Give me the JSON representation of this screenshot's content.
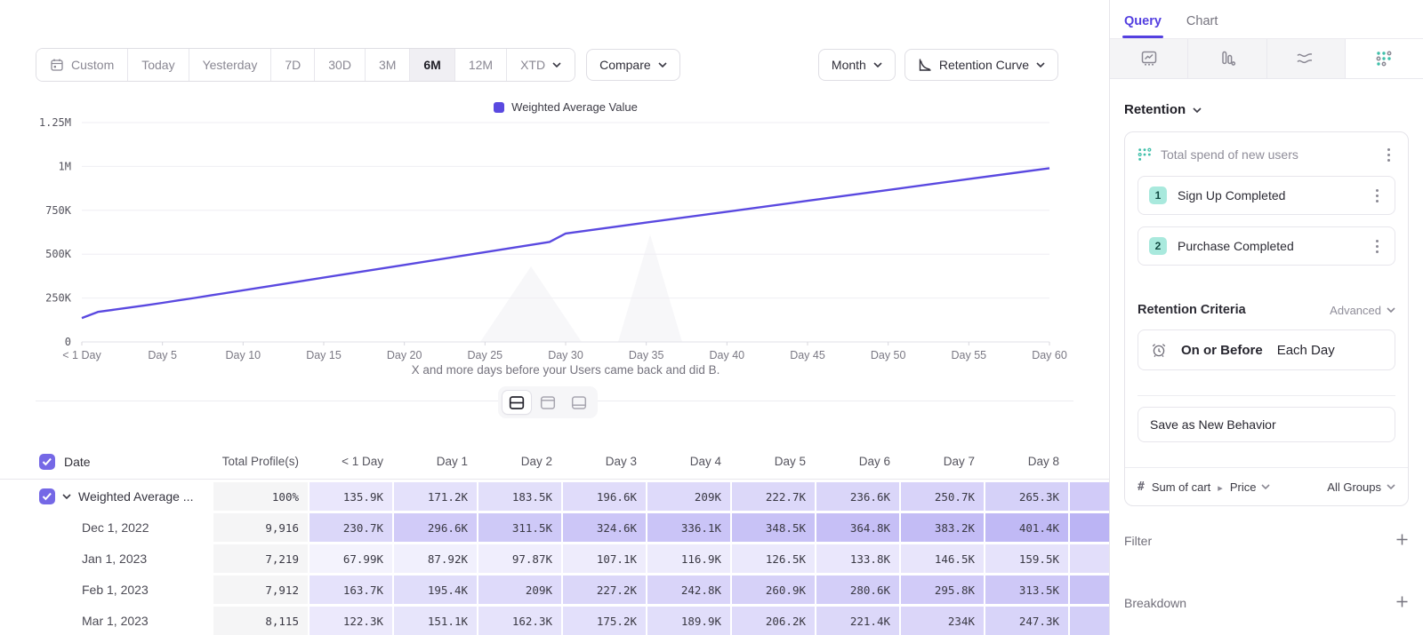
{
  "toolbar": {
    "date_ranges": [
      {
        "label": "Custom",
        "icon": "calendar-icon"
      },
      {
        "label": "Today"
      },
      {
        "label": "Yesterday"
      },
      {
        "label": "7D"
      },
      {
        "label": "30D"
      },
      {
        "label": "3M"
      },
      {
        "label": "6M"
      },
      {
        "label": "12M"
      },
      {
        "label": "XTD",
        "chevron": true
      }
    ],
    "selected_range": "6M",
    "compare_label": "Compare",
    "granularity_label": "Month",
    "chart_type_label": "Retention Curve"
  },
  "chart_data": {
    "type": "line",
    "legend": [
      "Weighted Average Value"
    ],
    "legend_position": "top-center",
    "grid": true,
    "line_color": "#5a49e0",
    "x_range": [
      0,
      60
    ],
    "y_range": [
      0,
      1250000
    ],
    "y_ticks": [
      {
        "value": 0,
        "label": "0"
      },
      {
        "value": 250000,
        "label": "250K"
      },
      {
        "value": 500000,
        "label": "500K"
      },
      {
        "value": 750000,
        "label": "750K"
      },
      {
        "value": 1000000,
        "label": "1M"
      },
      {
        "value": 1250000,
        "label": "1.25M"
      }
    ],
    "x_ticks": [
      {
        "day": 0,
        "label": "< 1 Day"
      },
      {
        "day": 5,
        "label": "Day 5"
      },
      {
        "day": 10,
        "label": "Day 10"
      },
      {
        "day": 15,
        "label": "Day 15"
      },
      {
        "day": 20,
        "label": "Day 20"
      },
      {
        "day": 25,
        "label": "Day 25"
      },
      {
        "day": 30,
        "label": "Day 30"
      },
      {
        "day": 35,
        "label": "Day 35"
      },
      {
        "day": 40,
        "label": "Day 40"
      },
      {
        "day": 45,
        "label": "Day 45"
      },
      {
        "day": 50,
        "label": "Day 50"
      },
      {
        "day": 55,
        "label": "Day 55"
      },
      {
        "day": 60,
        "label": "Day 60"
      }
    ],
    "series": [
      {
        "name": "Weighted Average Value",
        "points": [
          [
            0,
            135900
          ],
          [
            1,
            171200
          ],
          [
            2,
            183500
          ],
          [
            3,
            196600
          ],
          [
            4,
            209000
          ],
          [
            5,
            222700
          ],
          [
            6,
            236600
          ],
          [
            7,
            250700
          ],
          [
            8,
            265300
          ],
          [
            12,
            323000
          ],
          [
            16,
            381000
          ],
          [
            20,
            439000
          ],
          [
            24,
            497000
          ],
          [
            29,
            570000
          ],
          [
            30,
            618000
          ],
          [
            35,
            680000
          ],
          [
            40,
            742000
          ],
          [
            45,
            804000
          ],
          [
            50,
            866000
          ],
          [
            55,
            928000
          ],
          [
            60,
            990000
          ]
        ]
      }
    ],
    "caption": "X and more days before your Users came back and did B."
  },
  "view_toggle": {
    "options": [
      "split-view",
      "chart-top-view",
      "table-bottom-view"
    ],
    "active": "split-view"
  },
  "table": {
    "headers": [
      "Date",
      "Total Profile(s)",
      "< 1 Day",
      "Day 1",
      "Day 2",
      "Day 3",
      "Day 4",
      "Day 5",
      "Day 6",
      "Day 7",
      "Day 8"
    ],
    "rows": [
      {
        "label": "Weighted Average ...",
        "checkbox": true,
        "expandable": true,
        "total": "100%",
        "values": [
          "135.9K",
          "171.2K",
          "183.5K",
          "196.6K",
          "209K",
          "222.7K",
          "236.6K",
          "250.7K",
          "265.3K"
        ],
        "numeric": [
          135900,
          171200,
          183500,
          196600,
          209000,
          222700,
          236600,
          250700,
          265300
        ]
      },
      {
        "label": "Dec 1, 2022",
        "total": "9,916",
        "values": [
          "230.7K",
          "296.6K",
          "311.5K",
          "324.6K",
          "336.1K",
          "348.5K",
          "364.8K",
          "383.2K",
          "401.4K"
        ],
        "numeric": [
          230700,
          296600,
          311500,
          324600,
          336100,
          348500,
          364800,
          383200,
          401400
        ]
      },
      {
        "label": "Jan 1, 2023",
        "total": "7,219",
        "values": [
          "67.99K",
          "87.92K",
          "97.87K",
          "107.1K",
          "116.9K",
          "126.5K",
          "133.8K",
          "146.5K",
          "159.5K"
        ],
        "numeric": [
          67990,
          87920,
          97870,
          107100,
          116900,
          126500,
          133800,
          146500,
          159500
        ]
      },
      {
        "label": "Feb 1, 2023",
        "total": "7,912",
        "values": [
          "163.7K",
          "195.4K",
          "209K",
          "227.2K",
          "242.8K",
          "260.9K",
          "280.6K",
          "295.8K",
          "313.5K"
        ],
        "numeric": [
          163700,
          195400,
          209000,
          227200,
          242800,
          260900,
          280600,
          295800,
          313500
        ]
      },
      {
        "label": "Mar 1, 2023",
        "total": "8,115",
        "values": [
          "122.3K",
          "151.1K",
          "162.3K",
          "175.2K",
          "189.9K",
          "206.2K",
          "221.4K",
          "234K",
          "247.3K"
        ],
        "numeric": [
          122300,
          151100,
          162300,
          175200,
          189900,
          206200,
          221400,
          234000,
          247300
        ]
      }
    ]
  },
  "panel": {
    "tabs": [
      {
        "label": "Query",
        "active": true
      },
      {
        "label": "Chart",
        "active": false
      }
    ],
    "analysis_tabs": [
      "insights",
      "funnels",
      "flows",
      "retention"
    ],
    "active_analysis_tab": "retention",
    "measurement": "Retention",
    "behavior": {
      "title": "Total spend of new users",
      "steps": [
        {
          "number": "1",
          "label": "Sign Up Completed"
        },
        {
          "number": "2",
          "label": "Purchase Completed"
        }
      ]
    },
    "criteria": {
      "heading": "Retention Criteria",
      "mode": "Advanced",
      "condition": "On or Before",
      "frequency": "Each Day"
    },
    "save_button": "Save as New Behavior",
    "metric": {
      "prefix": "#",
      "label": "Sum of cart",
      "property": "Price",
      "groups": "All Groups"
    },
    "sections": [
      {
        "label": "Filter"
      },
      {
        "label": "Breakdown"
      }
    ]
  },
  "colors": {
    "accent_purple": "#5a49e0",
    "checkbox_purple": "#7568e6",
    "cell_purple": "#6958e7",
    "teal": "#3fbfa9",
    "badge_teal": "#a9e9dd"
  }
}
